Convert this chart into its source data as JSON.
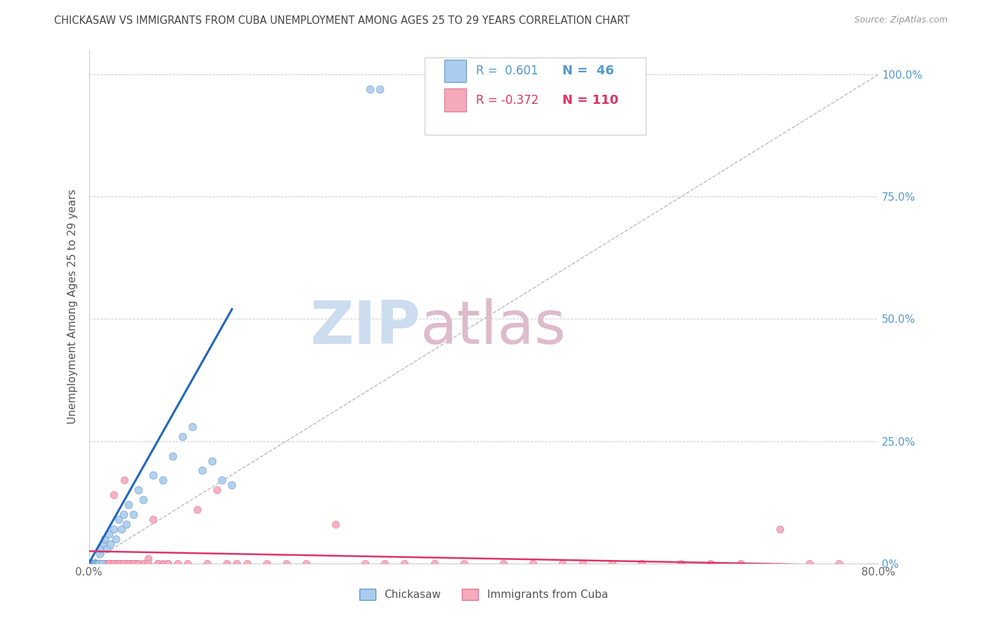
{
  "title": "CHICKASAW VS IMMIGRANTS FROM CUBA UNEMPLOYMENT AMONG AGES 25 TO 29 YEARS CORRELATION CHART",
  "source": "Source: ZipAtlas.com",
  "ylabel": "Unemployment Among Ages 25 to 29 years",
  "series1_label": "Chickasaw",
  "series2_label": "Immigrants from Cuba",
  "series1_color": "#aaccee",
  "series2_color": "#f4aabb",
  "series1_edge_color": "#6699cc",
  "series2_edge_color": "#dd7799",
  "trend1_color": "#2266bb",
  "trend2_color": "#dd3366",
  "ref_line_color": "#bbbbbb",
  "background_color": "#ffffff",
  "title_color": "#444444",
  "axis_label_color": "#555555",
  "right_axis_color": "#5599cc",
  "watermark_zip_color": "#ccddf0",
  "watermark_atlas_color": "#ddbbcc",
  "xlim": [
    0.0,
    0.8
  ],
  "ylim": [
    0.0,
    1.05
  ],
  "legend_r1": "R =  0.601",
  "legend_n1": "N =  46",
  "legend_r2": "R = -0.372",
  "legend_n2": "N = 110",
  "chickasaw_x": [
    0.0,
    0.0,
    0.001,
    0.002,
    0.003,
    0.003,
    0.004,
    0.005,
    0.005,
    0.006,
    0.006,
    0.007,
    0.008,
    0.008,
    0.009,
    0.01,
    0.01,
    0.011,
    0.012,
    0.013,
    0.015,
    0.016,
    0.018,
    0.02,
    0.022,
    0.025,
    0.027,
    0.03,
    0.033,
    0.035,
    0.038,
    0.04,
    0.045,
    0.05,
    0.055,
    0.065,
    0.075,
    0.085,
    0.095,
    0.105,
    0.115,
    0.125,
    0.135,
    0.145,
    0.285,
    0.295
  ],
  "chickasaw_y": [
    0.0,
    0.0,
    0.0,
    0.0,
    0.0,
    0.0,
    0.0,
    0.0,
    0.0,
    0.0,
    0.0,
    0.0,
    0.0,
    0.0,
    0.0,
    0.0,
    0.0,
    0.02,
    0.03,
    0.0,
    0.04,
    0.05,
    0.03,
    0.06,
    0.04,
    0.07,
    0.05,
    0.09,
    0.07,
    0.1,
    0.08,
    0.12,
    0.1,
    0.15,
    0.13,
    0.18,
    0.17,
    0.22,
    0.26,
    0.28,
    0.19,
    0.21,
    0.17,
    0.16,
    0.97,
    0.97
  ],
  "cuba_x": [
    0.0,
    0.0,
    0.0,
    0.0,
    0.0,
    0.0,
    0.0,
    0.0,
    0.001,
    0.001,
    0.002,
    0.002,
    0.003,
    0.003,
    0.004,
    0.004,
    0.005,
    0.005,
    0.005,
    0.006,
    0.006,
    0.007,
    0.007,
    0.008,
    0.008,
    0.009,
    0.009,
    0.01,
    0.01,
    0.01,
    0.011,
    0.012,
    0.013,
    0.014,
    0.015,
    0.016,
    0.017,
    0.018,
    0.019,
    0.02,
    0.022,
    0.024,
    0.025,
    0.026,
    0.028,
    0.03,
    0.032,
    0.034,
    0.036,
    0.038,
    0.04,
    0.042,
    0.045,
    0.048,
    0.05,
    0.055,
    0.06,
    0.065,
    0.07,
    0.075,
    0.08,
    0.09,
    0.1,
    0.11,
    0.12,
    0.13,
    0.14,
    0.15,
    0.16,
    0.18,
    0.2,
    0.22,
    0.25,
    0.28,
    0.3,
    0.32,
    0.35,
    0.38,
    0.42,
    0.45,
    0.48,
    0.5,
    0.53,
    0.56,
    0.6,
    0.63,
    0.66,
    0.7,
    0.73,
    0.76,
    0.0,
    0.0,
    0.002,
    0.003,
    0.005,
    0.007,
    0.01,
    0.012,
    0.015,
    0.018,
    0.02,
    0.025,
    0.03,
    0.035,
    0.04,
    0.045,
    0.05,
    0.06,
    0.07,
    0.08
  ],
  "cuba_y": [
    0.0,
    0.0,
    0.0,
    0.0,
    0.0,
    0.0,
    0.0,
    0.0,
    0.0,
    0.0,
    0.0,
    0.0,
    0.0,
    0.0,
    0.0,
    0.0,
    0.0,
    0.0,
    0.0,
    0.0,
    0.0,
    0.0,
    0.0,
    0.0,
    0.0,
    0.0,
    0.0,
    0.0,
    0.0,
    0.0,
    0.0,
    0.0,
    0.0,
    0.0,
    0.0,
    0.0,
    0.0,
    0.0,
    0.0,
    0.0,
    0.0,
    0.0,
    0.14,
    0.0,
    0.0,
    0.0,
    0.0,
    0.0,
    0.17,
    0.0,
    0.0,
    0.0,
    0.0,
    0.0,
    0.0,
    0.0,
    0.01,
    0.09,
    0.0,
    0.0,
    0.0,
    0.0,
    0.0,
    0.11,
    0.0,
    0.15,
    0.0,
    0.0,
    0.0,
    0.0,
    0.0,
    0.0,
    0.08,
    0.0,
    0.0,
    0.0,
    0.0,
    0.0,
    0.0,
    0.0,
    0.0,
    0.0,
    0.0,
    0.0,
    0.0,
    0.0,
    0.0,
    0.07,
    0.0,
    0.0,
    0.0,
    0.0,
    0.0,
    0.0,
    0.0,
    0.0,
    0.0,
    0.0,
    0.0,
    0.0,
    0.0,
    0.0,
    0.0,
    0.0,
    0.0,
    0.0,
    0.0,
    0.0,
    0.0,
    0.0
  ],
  "trend1_x0": 0.0,
  "trend1_y0": 0.0,
  "trend1_x1": 0.145,
  "trend1_y1": 0.52,
  "trend2_x0": 0.0,
  "trend2_y0": 0.025,
  "trend2_x1": 0.8,
  "trend2_y1": -0.005
}
